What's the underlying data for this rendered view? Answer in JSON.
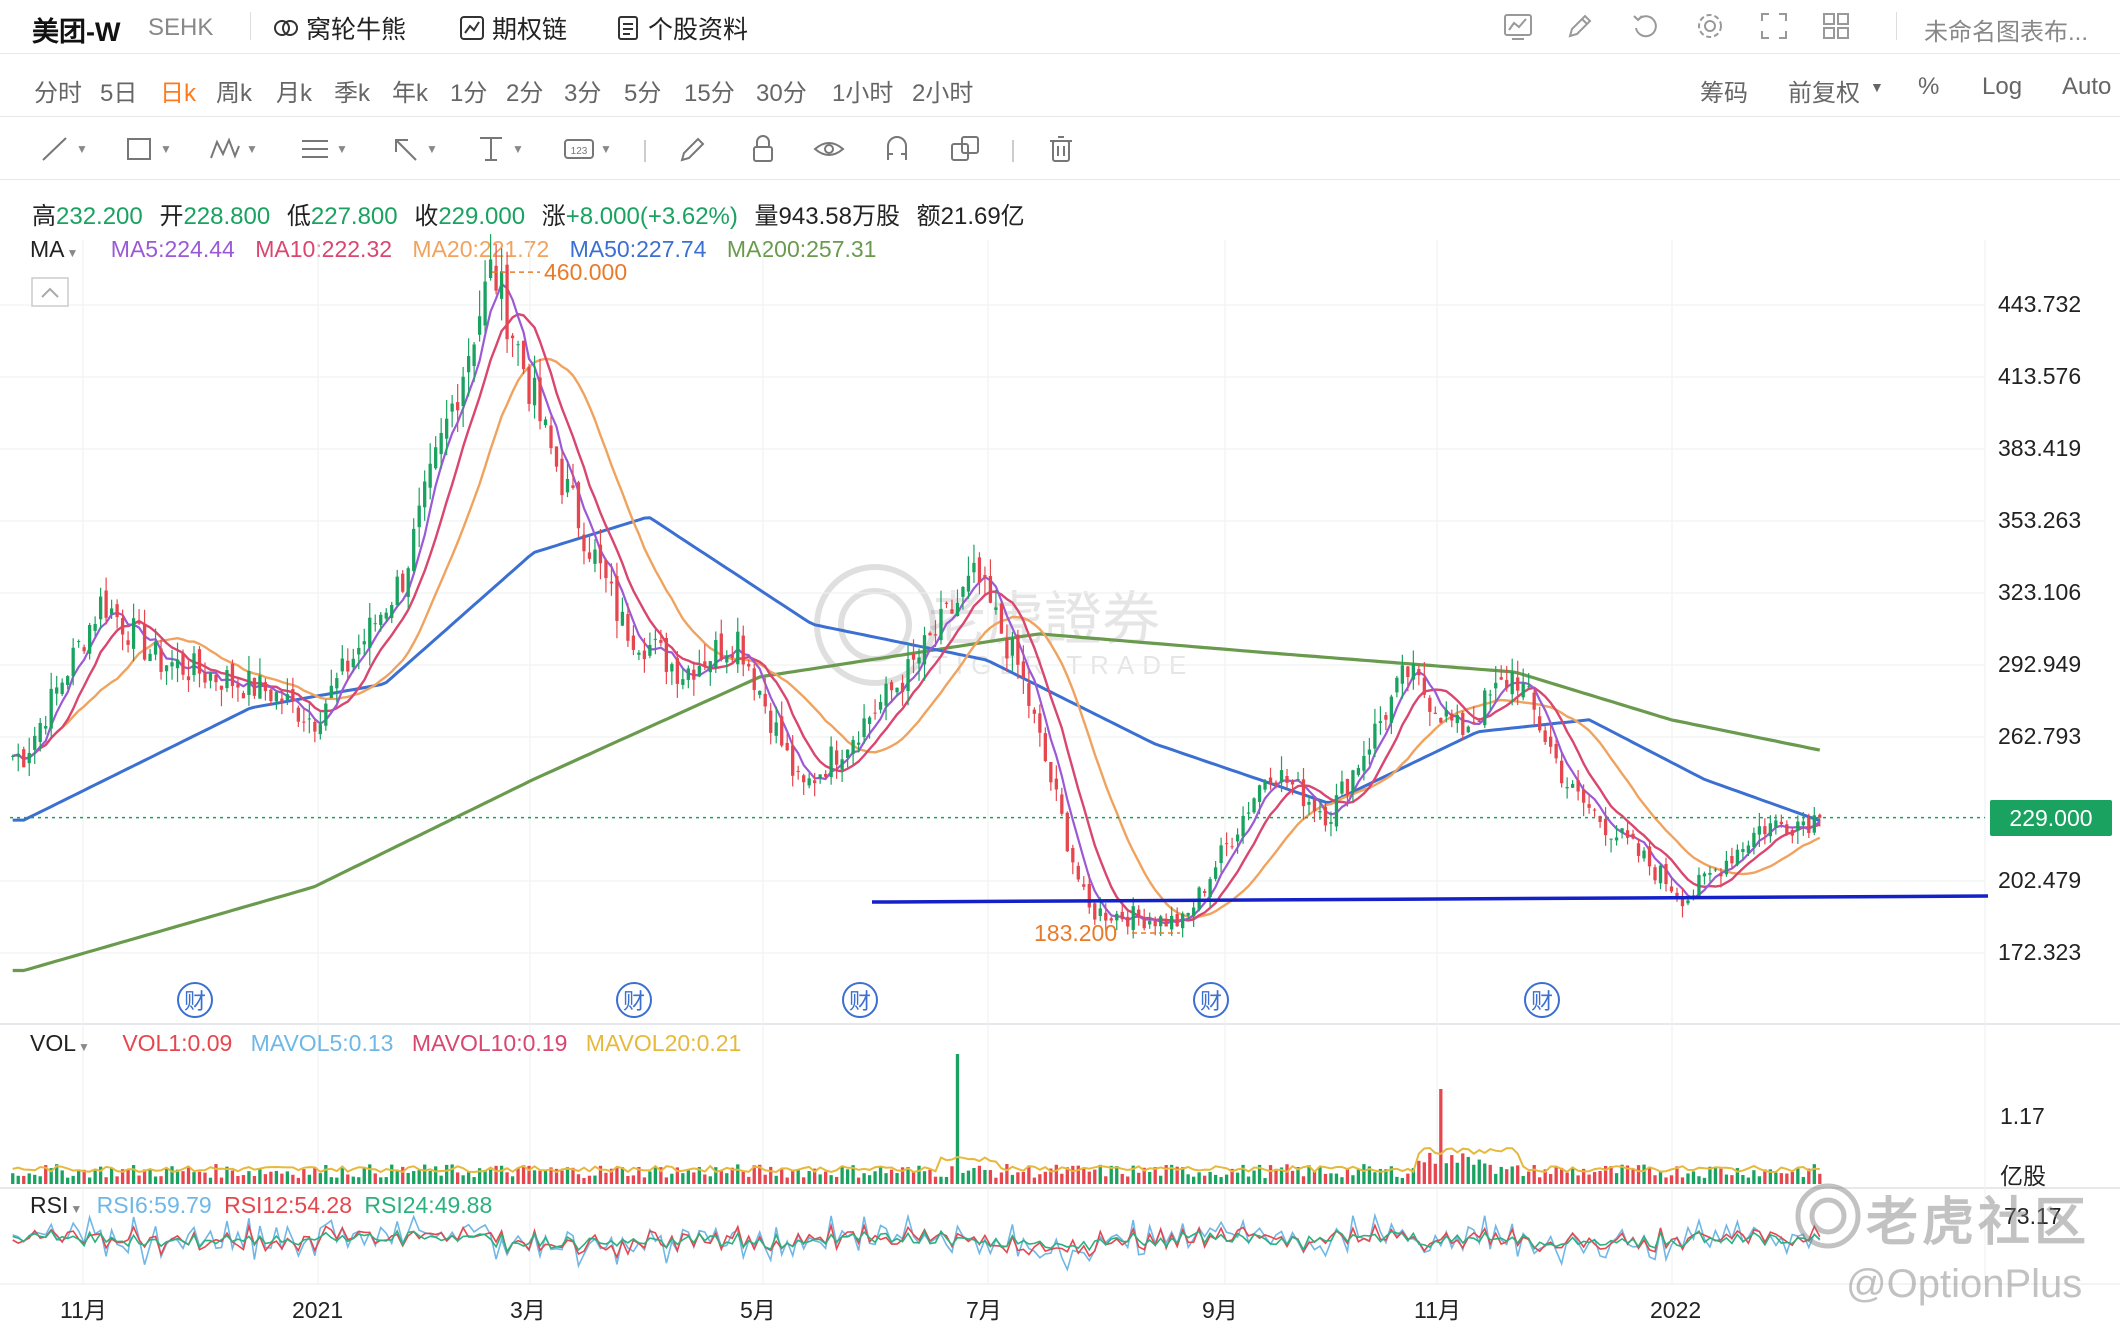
{
  "header": {
    "title": "美团-W",
    "exchange": "SEHK",
    "links": [
      "窝轮牛熊",
      "期权链",
      "个股资料"
    ],
    "layout_name": "未命名图表布..."
  },
  "periods": [
    "分时",
    "5日",
    "日k",
    "周k",
    "月k",
    "季k",
    "年k",
    "1分",
    "2分",
    "3分",
    "5分",
    "15分",
    "30分",
    "1小时",
    "2小时"
  ],
  "active_period": "日k",
  "right_options": [
    "筹码",
    "前复权",
    "%",
    "Log",
    "Auto"
  ],
  "ohlc": {
    "high_label": "高",
    "high": "232.200",
    "open_label": "开",
    "open": "228.800",
    "low_label": "低",
    "low": "227.800",
    "close_label": "收",
    "close": "229.000",
    "change_label": "涨",
    "change": "+8.000(+3.62%)",
    "volume_label": "量",
    "volume": "943.58万股",
    "amount_label": "额",
    "amount": "21.69亿"
  },
  "ma_legend": {
    "name": "MA",
    "items": [
      {
        "text": "MA5:224.44",
        "color": "#9b59d6"
      },
      {
        "text": "MA10:222.32",
        "color": "#d9466f"
      },
      {
        "text": "MA20:221.72",
        "color": "#f0a35e"
      },
      {
        "text": "MA50:227.74",
        "color": "#3b6fd1"
      },
      {
        "text": "MA200:257.31",
        "color": "#6a9a4e"
      }
    ]
  },
  "vol_legend": {
    "name": "VOL",
    "items": [
      {
        "text": "VOL1:0.09",
        "color": "#e6474f"
      },
      {
        "text": "MAVOL5:0.13",
        "color": "#6fb7e6"
      },
      {
        "text": "MAVOL10:0.19",
        "color": "#d9466f"
      },
      {
        "text": "MAVOL20:0.21",
        "color": "#e6b93c"
      }
    ]
  },
  "rsi_legend": {
    "name": "RSI",
    "items": [
      {
        "text": "RSI6:59.79",
        "color": "#6fb7e6"
      },
      {
        "text": "RSI12:54.28",
        "color": "#e6474f"
      },
      {
        "text": "RSI24:49.88",
        "color": "#2bb07f"
      }
    ]
  },
  "price_axis_labels": [
    "443.732",
    "413.576",
    "383.419",
    "353.263",
    "323.106",
    "292.949",
    "262.793",
    "202.479",
    "172.323"
  ],
  "current_price_tag": "229.000",
  "vol_axis_labels": [
    "1.17",
    "亿股"
  ],
  "rsi_axis_label": "73.17",
  "x_axis_labels": [
    "11月",
    "2021",
    "3月",
    "5月",
    "7月",
    "9月",
    "11月",
    "2022"
  ],
  "annotations": {
    "high_marker": "460.000",
    "low_marker": "183.200",
    "earnings_badge": "财"
  },
  "watermark": {
    "brand": "老虎社区",
    "handle": "@OptionPlus",
    "center_cn": "老虎證券",
    "center_en": "TIGER TRADE"
  },
  "chart_data": {
    "type": "candlestick",
    "title": "",
    "xlabel": "",
    "ylabel": "",
    "ylim": [
      157,
      465
    ],
    "grid": true,
    "x_ticks": [
      "11月",
      "2021",
      "3月",
      "5月",
      "7月",
      "9月",
      "11月",
      "2022"
    ],
    "y_ticks": [
      172.323,
      202.479,
      262.793,
      292.949,
      323.106,
      353.263,
      383.419,
      413.576,
      443.732
    ],
    "current_price": 229.0,
    "period_high": 460.0,
    "period_low": 183.2,
    "support_line": 194.5,
    "price_path_approx": [
      {
        "x": "2020-10-15",
        "y": 255
      },
      {
        "x": "2020-11-05",
        "y": 320
      },
      {
        "x": "2020-11-20",
        "y": 295
      },
      {
        "x": "2020-12-20",
        "y": 282
      },
      {
        "x": "2021-01-01",
        "y": 270
      },
      {
        "x": "2021-01-25",
        "y": 330
      },
      {
        "x": "2021-02-18",
        "y": 460
      },
      {
        "x": "2021-03-05",
        "y": 385
      },
      {
        "x": "2021-03-25",
        "y": 310
      },
      {
        "x": "2021-04-10",
        "y": 290
      },
      {
        "x": "2021-04-25",
        "y": 305
      },
      {
        "x": "2021-05-12",
        "y": 240
      },
      {
        "x": "2021-06-10",
        "y": 290
      },
      {
        "x": "2021-06-28",
        "y": 330
      },
      {
        "x": "2021-07-10",
        "y": 290
      },
      {
        "x": "2021-07-28",
        "y": 190
      },
      {
        "x": "2021-08-23",
        "y": 185
      },
      {
        "x": "2021-09-15",
        "y": 250
      },
      {
        "x": "2021-10-01",
        "y": 230
      },
      {
        "x": "2021-10-22",
        "y": 290
      },
      {
        "x": "2021-11-05",
        "y": 265
      },
      {
        "x": "2021-11-20",
        "y": 290
      },
      {
        "x": "2021-12-05",
        "y": 240
      },
      {
        "x": "2022-01-05",
        "y": 195
      },
      {
        "x": "2022-01-25",
        "y": 225
      },
      {
        "x": "2022-02-10",
        "y": 229
      }
    ],
    "ma200_path_approx": [
      {
        "x": "2020-10-15",
        "y": 165
      },
      {
        "x": "2021-01-01",
        "y": 200
      },
      {
        "x": "2021-03-01",
        "y": 245
      },
      {
        "x": "2021-05-01",
        "y": 288
      },
      {
        "x": "2021-07-15",
        "y": 306
      },
      {
        "x": "2021-09-15",
        "y": 298
      },
      {
        "x": "2021-11-20",
        "y": 290
      },
      {
        "x": "2022-01-01",
        "y": 270
      },
      {
        "x": "2022-02-10",
        "y": 257.31
      }
    ],
    "ma50_path_approx": [
      {
        "x": "2020-10-15",
        "y": 228
      },
      {
        "x": "2020-12-15",
        "y": 275
      },
      {
        "x": "2021-01-20",
        "y": 285
      },
      {
        "x": "2021-03-01",
        "y": 340
      },
      {
        "x": "2021-04-01",
        "y": 355
      },
      {
        "x": "2021-05-15",
        "y": 310
      },
      {
        "x": "2021-07-01",
        "y": 295
      },
      {
        "x": "2021-08-15",
        "y": 260
      },
      {
        "x": "2021-10-01",
        "y": 235
      },
      {
        "x": "2021-11-10",
        "y": 265
      },
      {
        "x": "2021-12-10",
        "y": 270
      },
      {
        "x": "2022-01-10",
        "y": 245
      },
      {
        "x": "2022-02-10",
        "y": 227.74
      }
    ]
  }
}
